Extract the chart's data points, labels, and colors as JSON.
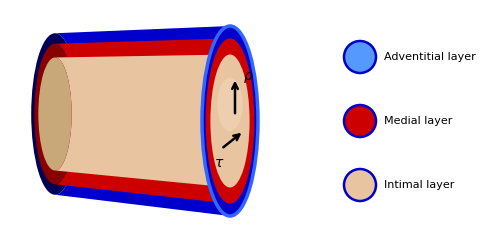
{
  "bg_color": "#ffffff",
  "adv_color": "#0000cc",
  "adv_highlight": "#4466ee",
  "adv_dark": "#000055",
  "adv_very_dark": "#000033",
  "medial_color": "#cc0000",
  "medial_dark": "#880000",
  "intimal_color": "#e8c4a0",
  "intimal_light": "#f2d8bc",
  "legend_circle_blue": "#5599ff",
  "legend_circle_red": "#cc0000",
  "legend_circle_tan": "#e8c4a0",
  "legend_outline": "#0000cc",
  "arrow_color": "#000000",
  "text_color": "#000000",
  "label_adventitial": "Adventitial layer",
  "label_medial": "Medial layer",
  "label_intimal": "Intimal layer",
  "tau_label": "τ",
  "rho_label": "ρ",
  "figsize": [
    5.0,
    2.42
  ],
  "dpi": 100
}
